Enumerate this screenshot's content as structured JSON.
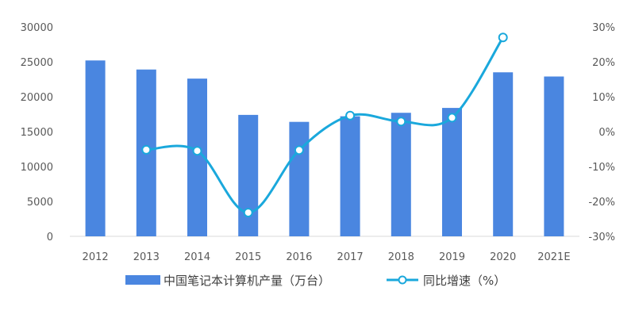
{
  "chart_data": {
    "type": "bar+line",
    "categories": [
      "2012",
      "2013",
      "2014",
      "2015",
      "2016",
      "2017",
      "2018",
      "2019",
      "2020",
      "2021E"
    ],
    "series": [
      {
        "name": "中国笔记本计算机产量（万台）",
        "type": "bar",
        "axis": "left",
        "values": [
          25200,
          23900,
          22600,
          17400,
          16400,
          17200,
          17700,
          18400,
          23500,
          22900
        ]
      },
      {
        "name": "同比增速（%）",
        "type": "line",
        "axis": "right",
        "values": [
          null,
          -5.2,
          -5.5,
          -23.2,
          -5.3,
          4.6,
          2.9,
          4.0,
          27.0,
          null
        ]
      }
    ],
    "yleft": {
      "min": 0,
      "max": 30000,
      "ticks": [
        0,
        5000,
        10000,
        15000,
        20000,
        25000,
        30000
      ]
    },
    "yright": {
      "min": -30,
      "max": 30,
      "ticks": [
        -30,
        -20,
        -10,
        0,
        10,
        20,
        30
      ],
      "suffix": "%"
    },
    "legend_position": "bottom",
    "colors": {
      "bar": "#4a86e0",
      "line": "#1aa8dc",
      "marker_fill": "#ffffff",
      "tick_text": "#595959",
      "axis": "#d9d9d9"
    }
  }
}
